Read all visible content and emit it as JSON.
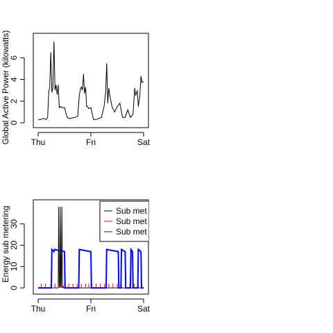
{
  "chart_data": [
    {
      "type": "line",
      "title": "",
      "xlabel": "",
      "ylabel": "Global Active Power (kilowatts)",
      "x_ticks": [
        "Thu",
        "Fri",
        "Sat"
      ],
      "y_ticks": [
        0,
        2,
        4,
        6
      ],
      "xlim": [
        0,
        2
      ],
      "ylim": [
        0,
        8
      ],
      "series": [
        {
          "color": "#000000",
          "x": [
            0.0,
            0.05,
            0.1,
            0.15,
            0.18,
            0.2,
            0.22,
            0.24,
            0.26,
            0.28,
            0.3,
            0.32,
            0.34,
            0.36,
            0.38,
            0.4,
            0.42,
            0.46,
            0.5,
            0.55,
            0.6,
            0.7,
            0.75,
            0.78,
            0.8,
            0.82,
            0.84,
            0.86,
            0.88,
            0.9,
            0.92,
            0.94,
            0.96,
            1.0,
            1.05,
            1.1,
            1.2,
            1.25,
            1.28,
            1.3,
            1.32,
            1.34,
            1.36,
            1.4,
            1.45,
            1.5,
            1.55,
            1.6,
            1.65,
            1.7,
            1.75,
            1.8,
            1.83,
            1.85,
            1.88,
            1.9,
            1.93,
            1.95,
            1.97,
            2.0
          ],
          "values": [
            0.3,
            0.3,
            0.4,
            0.3,
            0.5,
            2.8,
            3.3,
            6.5,
            2.8,
            3.3,
            7.5,
            3.0,
            3.5,
            2.6,
            3.5,
            1.4,
            1.5,
            1.4,
            1.4,
            0.5,
            0.4,
            0.5,
            0.6,
            2.5,
            3.1,
            3.3,
            3.0,
            4.5,
            2.7,
            3.3,
            1.5,
            1.5,
            1.3,
            1.4,
            0.3,
            0.3,
            0.5,
            1.5,
            2.8,
            5.5,
            1.8,
            3.2,
            2.5,
            1.5,
            1.0,
            1.5,
            1.8,
            0.5,
            0.5,
            1.2,
            0.5,
            0.8,
            3.2,
            2.5,
            3.0,
            1.5,
            2.6,
            4.3,
            3.7,
            3.8
          ]
        }
      ]
    },
    {
      "type": "line",
      "title": "",
      "xlabel": "",
      "ylabel": "Energy sub metering",
      "x_ticks": [
        "Thu",
        "Fri",
        "Sat"
      ],
      "y_ticks": [
        0,
        10,
        20,
        30
      ],
      "xlim": [
        0,
        2
      ],
      "ylim": [
        0,
        40
      ],
      "legend": {
        "placement": "top-right",
        "entries": [
          {
            "label": "Sub met",
            "color": "#000000"
          },
          {
            "label": "Sub met",
            "color": "#ff0000"
          },
          {
            "label": "Sub met",
            "color": "#0000ff"
          }
        ]
      },
      "series": [
        {
          "color": "#000000",
          "x": [
            0.0,
            0.38,
            0.39,
            0.4,
            0.41,
            0.42,
            0.43,
            0.44,
            0.45,
            0.46,
            0.47,
            0.48,
            2.0
          ],
          "values": [
            0,
            0,
            38,
            0,
            1,
            38,
            0,
            1,
            38,
            0,
            1,
            0,
            0
          ]
        },
        {
          "color": "#ff0000",
          "x": [
            0.06,
            0.14,
            0.24,
            0.32,
            0.38,
            0.44,
            0.5,
            0.58,
            0.66,
            0.74,
            0.82,
            0.9,
            0.96,
            1.02,
            1.1,
            1.18,
            1.26,
            1.34,
            1.42,
            1.5,
            1.58,
            1.66,
            1.74,
            1.82,
            1.9,
            1.96
          ],
          "values": [
            2,
            2,
            2,
            2,
            2,
            2,
            2,
            2,
            2,
            2,
            2,
            2,
            2,
            2,
            2,
            2,
            2,
            2,
            2,
            2,
            2,
            2,
            2,
            2,
            2,
            2
          ]
        },
        {
          "color": "#0000ff",
          "x": [
            0.0,
            0.25,
            0.26,
            0.3,
            0.31,
            0.5,
            0.51,
            0.77,
            0.78,
            1.0,
            1.01,
            1.29,
            1.3,
            1.52,
            1.53,
            1.57,
            1.58,
            1.65,
            1.66,
            1.75,
            1.76,
            1.79,
            1.8,
            1.89,
            1.9,
            1.95,
            1.96,
            2.0
          ],
          "values": [
            0,
            0,
            18,
            17,
            18,
            17,
            0,
            0,
            18,
            17,
            0,
            0,
            18,
            17,
            0,
            0,
            18,
            17,
            0,
            0,
            18,
            17,
            0,
            0,
            18,
            17,
            0,
            0
          ]
        }
      ]
    }
  ]
}
